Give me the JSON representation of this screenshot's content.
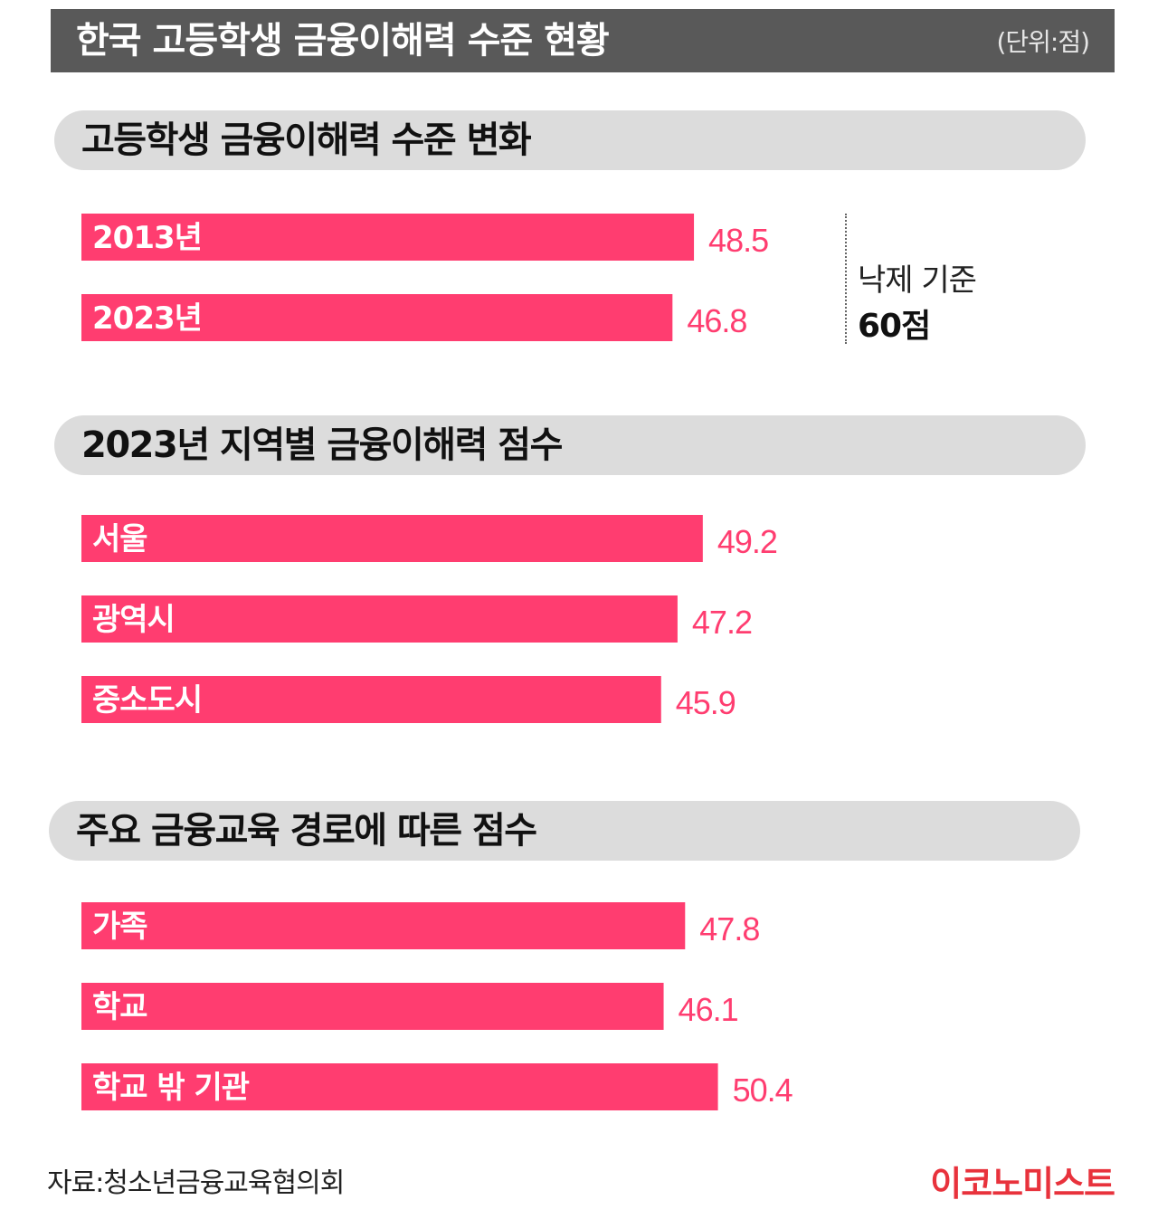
{
  "header": {
    "title": "한국 고등학생 금융이해력 수준 현황",
    "unit": "(단위:점)"
  },
  "chart_data": [
    {
      "type": "bar",
      "orientation": "horizontal",
      "title": "고등학생 금융이해력 수준 변화",
      "categories": [
        "2013년",
        "2023년"
      ],
      "values": [
        48.5,
        46.8
      ],
      "value_labels": [
        "48.5",
        "46.8"
      ],
      "reference": {
        "label": "낙제 기준",
        "value_label": "60점",
        "value": 60
      }
    },
    {
      "type": "bar",
      "orientation": "horizontal",
      "title": "2023년 지역별 금융이해력 점수",
      "categories": [
        "서울",
        "광역시",
        "중소도시"
      ],
      "values": [
        49.2,
        47.2,
        45.9
      ],
      "value_labels": [
        "49.2",
        "47.2",
        "45.9"
      ]
    },
    {
      "type": "bar",
      "orientation": "horizontal",
      "title": "주요 금융교육 경로에 따른 점수",
      "categories": [
        "가족",
        "학교",
        "학교 밖 기관"
      ],
      "values": [
        47.8,
        46.1,
        50.4
      ],
      "value_labels": [
        "47.8",
        "46.1",
        "50.4"
      ]
    }
  ],
  "colors": {
    "bar": "#ff3d70",
    "title_bar": "#595959",
    "section_pill": "#dcdcdc",
    "brand": "#e8323c"
  },
  "footer": {
    "source": "자료:청소년금융교육협의회",
    "brand": "이코노미스트"
  }
}
